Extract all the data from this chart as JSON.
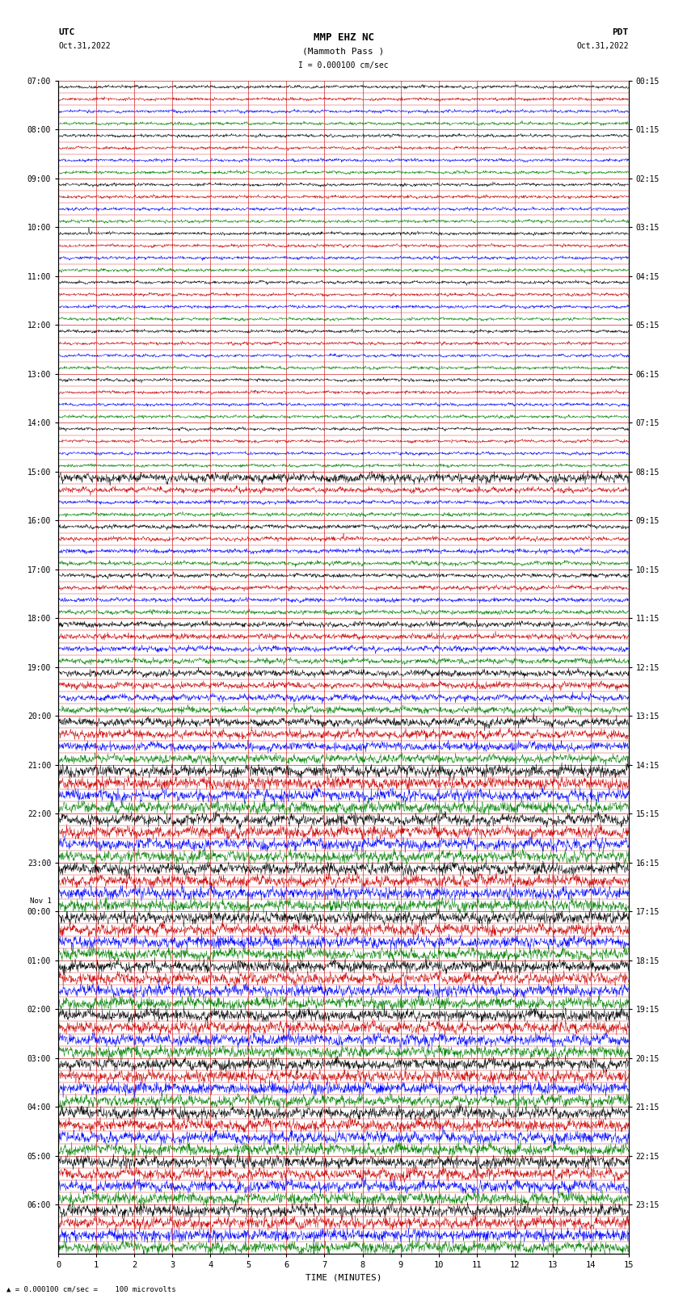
{
  "title_line1": "MMP EHZ NC",
  "title_line2": "(Mammoth Pass )",
  "scale_label": "I = 0.000100 cm/sec",
  "footer_label": "= 0.000100 cm/sec =    100 microvolts",
  "xlabel": "TIME (MINUTES)",
  "left_label": "UTC",
  "left_date": "Oct.31,2022",
  "right_label": "PDT",
  "right_date": "Oct.31,2022",
  "xmin": 0,
  "xmax": 15,
  "background_color": "#ffffff",
  "trace_colors": [
    "black",
    "#cc0000",
    "blue",
    "green"
  ],
  "num_rows": 96,
  "noise_seed": 42,
  "fig_width": 8.5,
  "fig_height": 16.13,
  "utc_hour_labels": [
    "07:00",
    "08:00",
    "09:00",
    "10:00",
    "11:00",
    "12:00",
    "13:00",
    "14:00",
    "15:00",
    "16:00",
    "17:00",
    "18:00",
    "19:00",
    "20:00",
    "21:00",
    "22:00",
    "23:00",
    "00:00",
    "01:00",
    "02:00",
    "03:00",
    "04:00",
    "05:00",
    "06:00"
  ],
  "nov1_row": 68,
  "pdt_hour_labels": [
    "00:15",
    "01:15",
    "02:15",
    "03:15",
    "04:15",
    "05:15",
    "06:15",
    "07:15",
    "08:15",
    "09:15",
    "10:15",
    "11:15",
    "12:15",
    "13:15",
    "14:15",
    "15:15",
    "16:15",
    "17:15",
    "18:15",
    "19:15",
    "20:15",
    "21:15",
    "22:15",
    "23:15"
  ],
  "xticks": [
    0,
    1,
    2,
    3,
    4,
    5,
    6,
    7,
    8,
    9,
    10,
    11,
    12,
    13,
    14,
    15
  ]
}
